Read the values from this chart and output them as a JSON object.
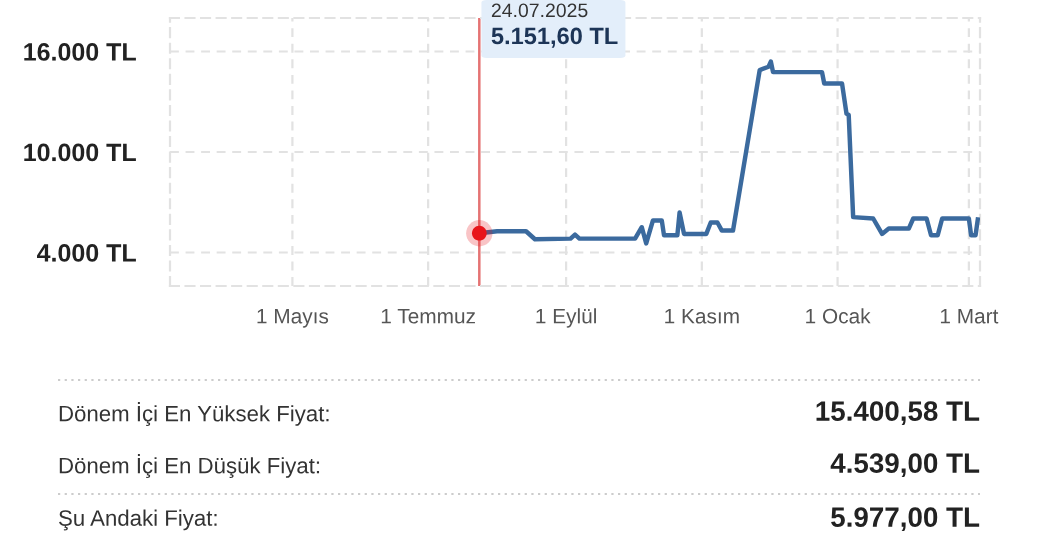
{
  "chart_data": {
    "type": "line",
    "x": [
      "2025-07-24",
      "2025-08-01",
      "2025-08-14",
      "2025-08-18",
      "2025-09-03",
      "2025-09-05",
      "2025-09-07",
      "2025-10-02",
      "2025-10-05",
      "2025-10-07",
      "2025-10-10",
      "2025-10-14",
      "2025-10-15",
      "2025-10-21",
      "2025-10-22",
      "2025-10-24",
      "2025-11-03",
      "2025-11-05",
      "2025-11-08",
      "2025-11-10",
      "2025-11-15",
      "2025-11-27",
      "2025-12-01",
      "2025-12-02",
      "2025-12-03",
      "2025-12-25",
      "2025-12-26",
      "2026-01-03",
      "2026-01-05",
      "2026-01-06",
      "2026-01-08",
      "2026-01-17",
      "2026-01-21",
      "2026-01-24",
      "2026-02-02",
      "2026-02-04",
      "2026-02-10",
      "2026-02-12",
      "2026-02-15",
      "2026-02-17",
      "2026-03-01",
      "2026-03-02",
      "2026-03-04",
      "2026-03-05"
    ],
    "series": [
      {
        "color": "#3b6a9e",
        "values": [
          5151.6,
          5270,
          5270,
          4790,
          4830,
          5070,
          4830,
          4830,
          5510,
          4539,
          5910,
          5910,
          5030,
          5030,
          6390,
          5110,
          5110,
          5790,
          5790,
          5310,
          5310,
          14890,
          15090,
          15400.58,
          14770,
          14770,
          14090,
          14090,
          12290,
          12210,
          6110,
          6030,
          5110,
          5430,
          5430,
          6030,
          6030,
          5030,
          5030,
          6030,
          6030,
          5030,
          5030,
          5977
        ]
      },
      {
        "type": "scatter",
        "color": "#e8141a",
        "x": [
          "2025-07-24"
        ],
        "values": [
          5151.6
        ]
      }
    ],
    "xlim": [
      "2025-03-07",
      "2026-03-06"
    ],
    "xticks": [
      {
        "value": "2025-05-01",
        "label": "1 Mayıs"
      },
      {
        "value": "2025-07-01",
        "label": "1 Temmuz"
      },
      {
        "value": "2025-09-01",
        "label": "1 Eylül"
      },
      {
        "value": "2025-11-01",
        "label": "1 Kasım"
      },
      {
        "value": "2026-01-01",
        "label": "1 Ocak"
      },
      {
        "value": "2026-03-01",
        "label": "1 Mart"
      }
    ],
    "ylim": [
      2000,
      18000
    ],
    "yticks": [
      {
        "value": 4000,
        "label": "4.000 TL"
      },
      {
        "value": 10000,
        "label": "10.000 TL"
      },
      {
        "value": 16000,
        "label": "16.000 TL"
      }
    ],
    "grid": true,
    "line_style": "solid",
    "ref_lines": [
      {
        "axis": "x",
        "value": "2025-07-24",
        "color": "#e57373"
      }
    ],
    "annotations": [
      "24.07.2025",
      "5.151,60 TL",
      "Dönem İçi En Yüksek Fiyat:",
      "15.400,58 TL",
      "Dönem İçi En Düşük Fiyat:",
      "4.539,00 TL",
      "Şu Andaki Fiyat:",
      "5.977,00 TL"
    ]
  }
}
